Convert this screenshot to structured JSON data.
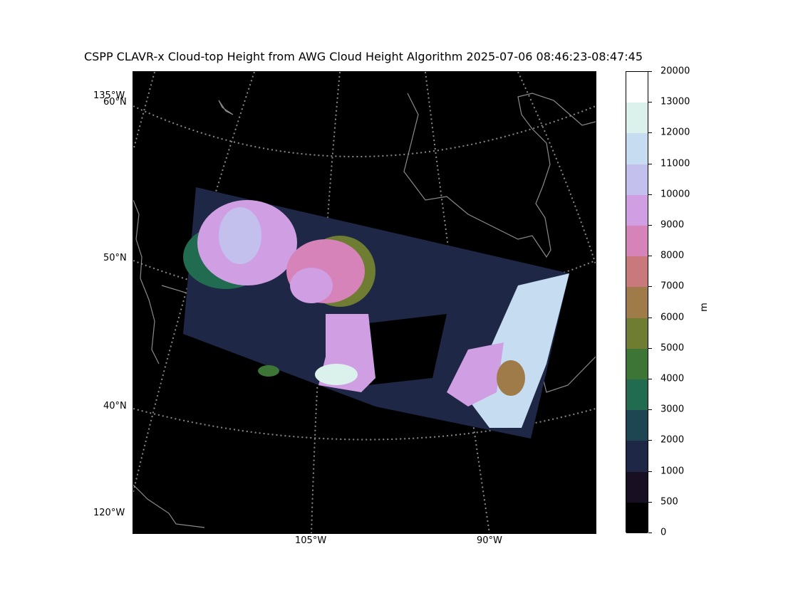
{
  "title": "CSPP CLAVR-x Cloud-top Height from AWG Cloud Height Algorithm 2025-07-06 08:46:23-08:47:45",
  "map": {
    "lat_labels": [
      "60°N",
      "50°N",
      "40°N"
    ],
    "lon_labels_left": [
      "135°W",
      "120°W"
    ],
    "lon_labels_bottom": [
      "105°W",
      "90°W"
    ]
  },
  "colorbar": {
    "unit": "m",
    "ticks": [
      "20000",
      "13000",
      "12000",
      "11000",
      "10000",
      "9000",
      "8000",
      "7000",
      "6000",
      "5000",
      "4000",
      "3000",
      "2000",
      "1000",
      "500",
      "0"
    ],
    "colors": [
      "#ffffff",
      "#dbf1ec",
      "#c6dcf1",
      "#c4c0ee",
      "#cf9ee3",
      "#d583b8",
      "#c9787b",
      "#a07b4a",
      "#6e7d31",
      "#3d7537",
      "#216b50",
      "#1d4652",
      "#1f2746",
      "#190f22",
      "#000000"
    ]
  }
}
